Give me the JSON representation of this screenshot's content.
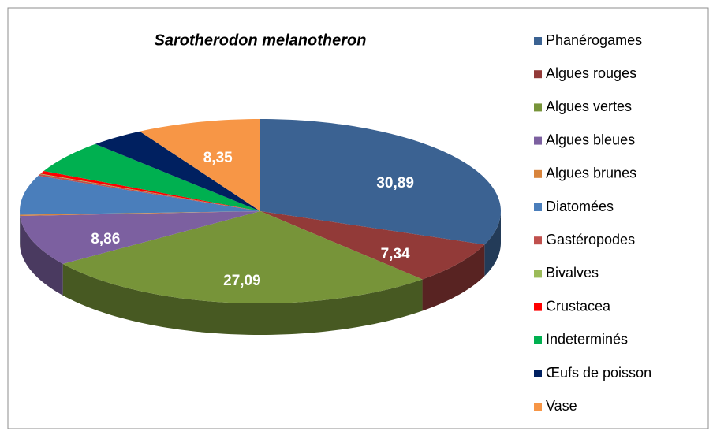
{
  "chart_data": {
    "type": "pie",
    "title": "Sarotherodon melanotheron",
    "categories": [
      "Phanérogames",
      "Algues rouges",
      "Algues vertes",
      "Algues bleues",
      "Algues brunes",
      "Diatomées",
      "Gastéropodes",
      "Bivalves",
      "Crustacea",
      "Indeterminés",
      "Œufs de poisson",
      "Vase"
    ],
    "values": [
      30.89,
      7.34,
      27.09,
      8.86,
      0.2,
      6.9,
      0.3,
      0.1,
      0.5,
      5.8,
      3.67,
      8.35
    ],
    "value_labels": [
      "30,89",
      "7,34",
      "27,09",
      "8,86",
      null,
      null,
      null,
      null,
      null,
      null,
      null,
      "8,35"
    ],
    "colors": [
      "#3b6292",
      "#923a38",
      "#779439",
      "#7c60a0",
      "#d8843c",
      "#4a7ebb",
      "#c0504d",
      "#9bbb59",
      "#ff0000",
      "#00b050",
      "#002060",
      "#f79646"
    ],
    "legend": "right"
  }
}
